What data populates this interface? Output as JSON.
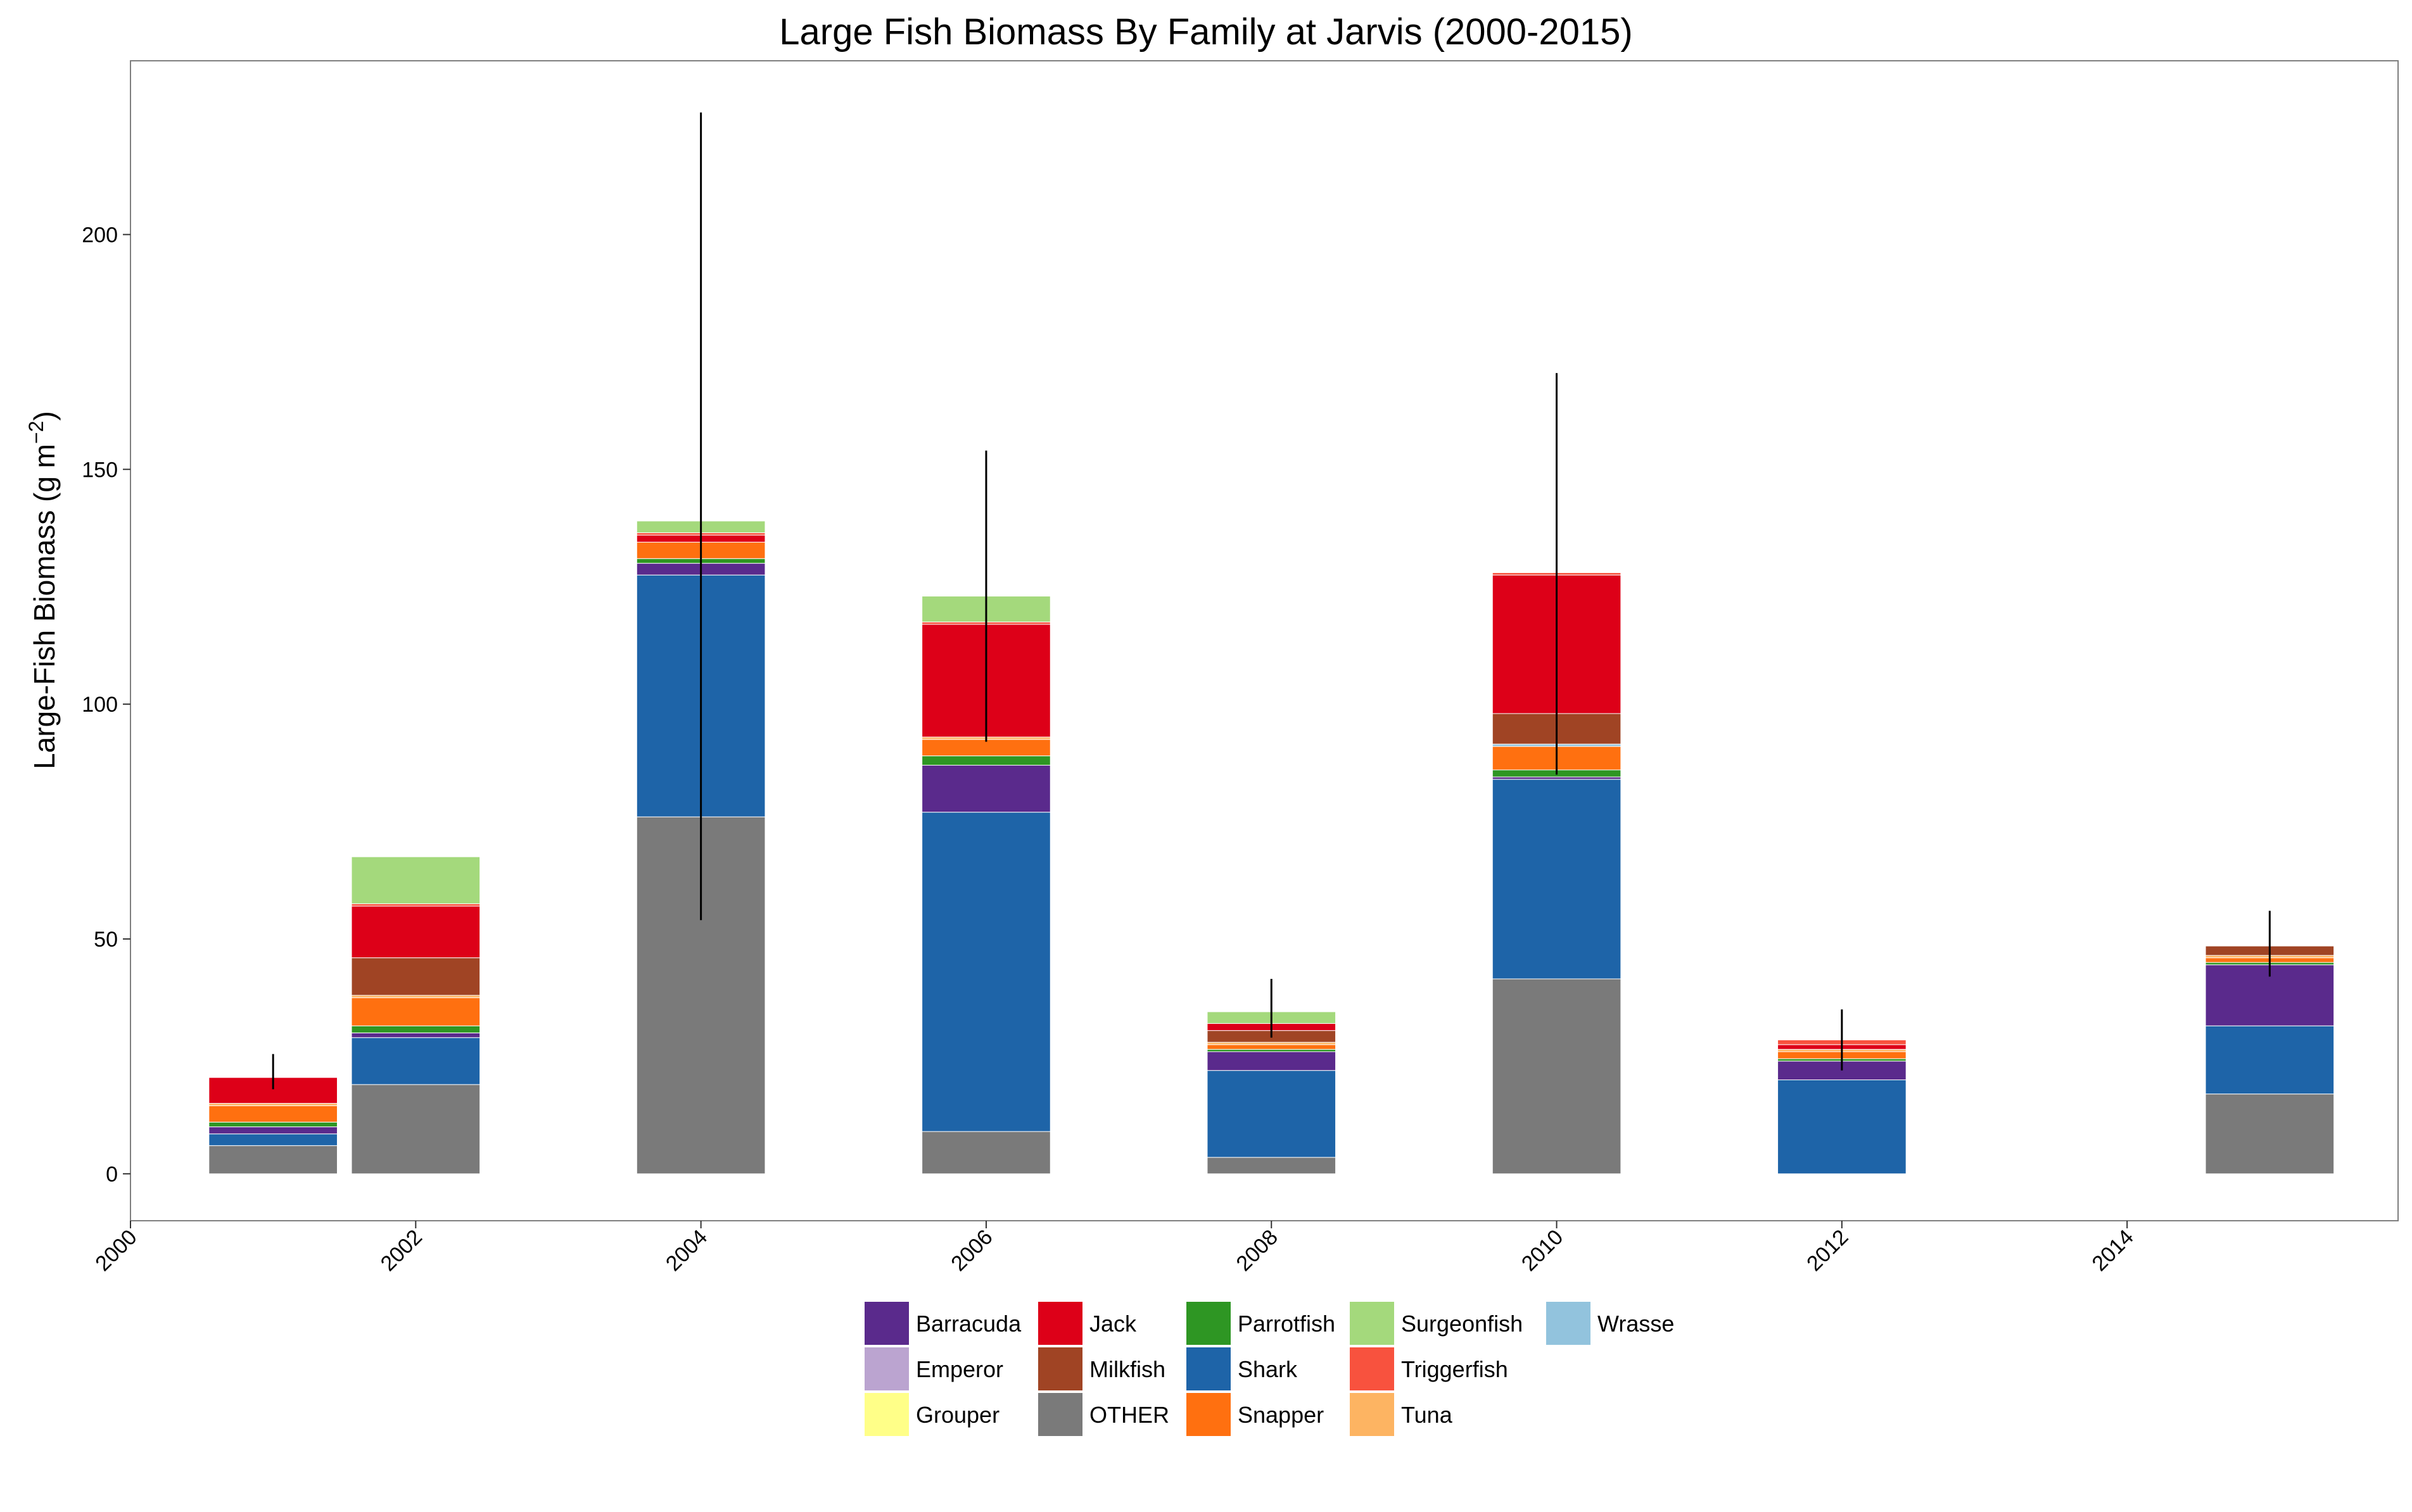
{
  "chart_data": {
    "type": "bar",
    "stacked": true,
    "title": "Large Fish Biomass By Family at Jarvis (2000-2015)",
    "xlabel": "",
    "ylabel": "Large-Fish Biomass (g m",
    "ylabel_sup": "−2",
    "ylabel_end": ")",
    "xlim": [
      2000,
      2015.9
    ],
    "ylim": [
      -10,
      237
    ],
    "x_ticks": [
      2000,
      2002,
      2004,
      2006,
      2008,
      2010,
      2012,
      2014
    ],
    "x_tick_labels": [
      "2000",
      "2002",
      "2004",
      "2006",
      "2008",
      "2010",
      "2012",
      "2014"
    ],
    "y_ticks": [
      0,
      50,
      100,
      150,
      200
    ],
    "y_tick_labels": [
      "0",
      "50",
      "100",
      "150",
      "200"
    ],
    "x": [
      2001,
      2002,
      2004,
      2006,
      2008,
      2010,
      2012,
      2015
    ],
    "bar_width_years": 0.9,
    "stack_order": [
      "OTHER",
      "Shark",
      "Barracuda",
      "Parrotfish",
      "Snapper",
      "Tuna",
      "Wrasse",
      "Milkfish",
      "Jack",
      "Triggerfish",
      "Surgeonfish",
      "Emperor",
      "Grouper"
    ],
    "series": [
      {
        "name": "Barracuda",
        "color": "#5a2a8c",
        "values": [
          1.5,
          1.0,
          2.5,
          10.0,
          4.0,
          0.5,
          4.0,
          13.0
        ]
      },
      {
        "name": "Emperor",
        "color": "#bba4d0",
        "values": [
          0,
          0,
          0,
          0,
          0,
          0,
          0,
          0
        ]
      },
      {
        "name": "Grouper",
        "color": "#ffff88",
        "values": [
          0,
          0,
          0,
          0,
          0,
          0,
          0,
          0
        ]
      },
      {
        "name": "Jack",
        "color": "#dd0018",
        "values": [
          5.5,
          11.0,
          1.5,
          24.0,
          1.5,
          29.5,
          1.0,
          0
        ]
      },
      {
        "name": "Milkfish",
        "color": "#a04424",
        "values": [
          0,
          8.0,
          0,
          0,
          2.5,
          6.5,
          0,
          2.0
        ]
      },
      {
        "name": "OTHER",
        "color": "#7a7a7a",
        "values": [
          6.0,
          19.0,
          76.0,
          9.0,
          3.5,
          41.5,
          0,
          17.0
        ]
      },
      {
        "name": "Parrotfish",
        "color": "#2e9623",
        "values": [
          1.0,
          1.5,
          1.0,
          2.0,
          0.5,
          1.5,
          0.5,
          0.5
        ]
      },
      {
        "name": "Shark",
        "color": "#1e64a8",
        "values": [
          2.5,
          10.0,
          51.5,
          68.0,
          18.5,
          42.5,
          20.0,
          14.5
        ]
      },
      {
        "name": "Snapper",
        "color": "#ff7010",
        "values": [
          3.5,
          6.0,
          3.5,
          3.5,
          1.0,
          5.0,
          1.5,
          1.0
        ]
      },
      {
        "name": "Surgeonfish",
        "color": "#a4d97c",
        "values": [
          0,
          10.0,
          2.5,
          5.5,
          2.5,
          0,
          0,
          0
        ]
      },
      {
        "name": "Triggerfish",
        "color": "#f8523e",
        "values": [
          0,
          0.5,
          0.5,
          0.5,
          0,
          0.5,
          1.0,
          0
        ]
      },
      {
        "name": "Tuna",
        "color": "#fdb462",
        "values": [
          0.5,
          0.5,
          0,
          0.5,
          0.5,
          0,
          0.5,
          0.5
        ]
      },
      {
        "name": "Wrasse",
        "color": "#92c3dd",
        "values": [
          0,
          0,
          0,
          0,
          0,
          0.5,
          0,
          0
        ]
      }
    ],
    "error_bars": [
      {
        "x": 2001,
        "low": 18,
        "high": 25.5
      },
      {
        "x": 2002,
        "low": null,
        "high": null
      },
      {
        "x": 2004,
        "low": 54,
        "high": 226
      },
      {
        "x": 2006,
        "low": 92,
        "high": 154
      },
      {
        "x": 2008,
        "low": 29,
        "high": 41.5
      },
      {
        "x": 2010,
        "low": 85,
        "high": 170.5
      },
      {
        "x": 2012,
        "low": 22,
        "high": 35
      },
      {
        "x": 2015,
        "low": 42,
        "high": 56
      }
    ],
    "legend": {
      "placement": "bottom",
      "columns": [
        [
          "Barracuda",
          "Emperor",
          "Grouper"
        ],
        [
          "Jack",
          "Milkfish",
          "OTHER"
        ],
        [
          "Parrotfish",
          "Shark",
          "Snapper"
        ],
        [
          "Surgeonfish",
          "Triggerfish",
          "Tuna"
        ],
        [
          "Wrasse"
        ]
      ]
    },
    "grid": false
  }
}
